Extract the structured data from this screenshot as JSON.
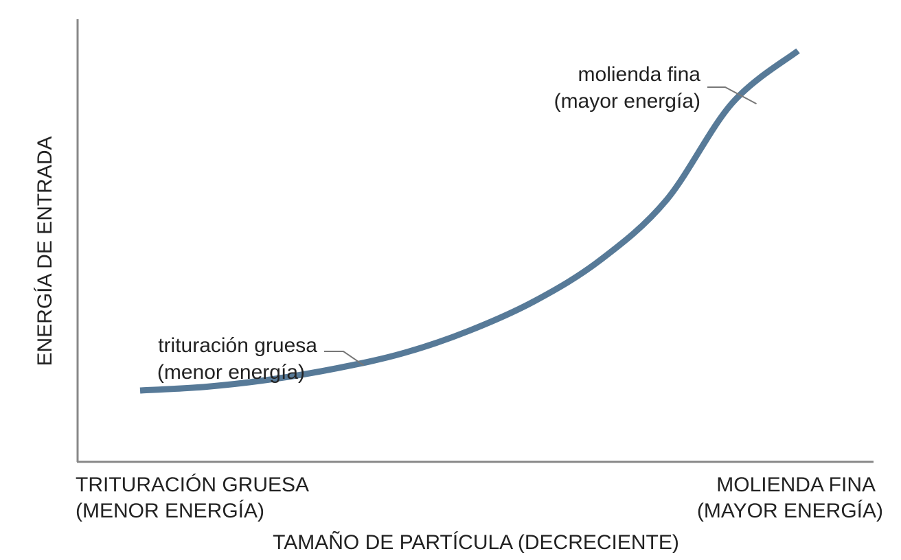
{
  "chart_data": {
    "type": "line",
    "title": "",
    "xlabel": "TAMAÑO DE PARTÍCULA (DECRECIENTE)",
    "ylabel": "ENERGÍA DE ENTRADA",
    "x_end_labels": {
      "left": [
        "TRITURACIÓN GRUESA",
        "(MENOR ENERGÍA)"
      ],
      "right": [
        "MOLIENDA FINA",
        "(MAYOR ENERGÍA)"
      ]
    },
    "xlim": [
      0,
      1
    ],
    "ylim": [
      0,
      1
    ],
    "grid": false,
    "series": [
      {
        "color": "#577a98",
        "x": [
          0.0,
          0.1,
          0.2,
          0.3,
          0.4,
          0.5,
          0.6,
          0.7,
          0.8,
          0.9,
          1.0
        ],
        "y": [
          0.09,
          0.1,
          0.12,
          0.15,
          0.19,
          0.25,
          0.33,
          0.44,
          0.6,
          0.86,
          1.0
        ]
      }
    ],
    "annotations": [
      {
        "lines": [
          "trituración gruesa",
          "(menor energía)"
        ],
        "x": 0.34,
        "y": 0.15
      },
      {
        "lines": [
          "molienda fina",
          "(mayor energía)"
        ],
        "x": 0.94,
        "y": 0.86
      }
    ]
  },
  "colors": {
    "axis": "#888888",
    "curve": "#577a98",
    "leader": "#777777",
    "text": "#222222"
  }
}
